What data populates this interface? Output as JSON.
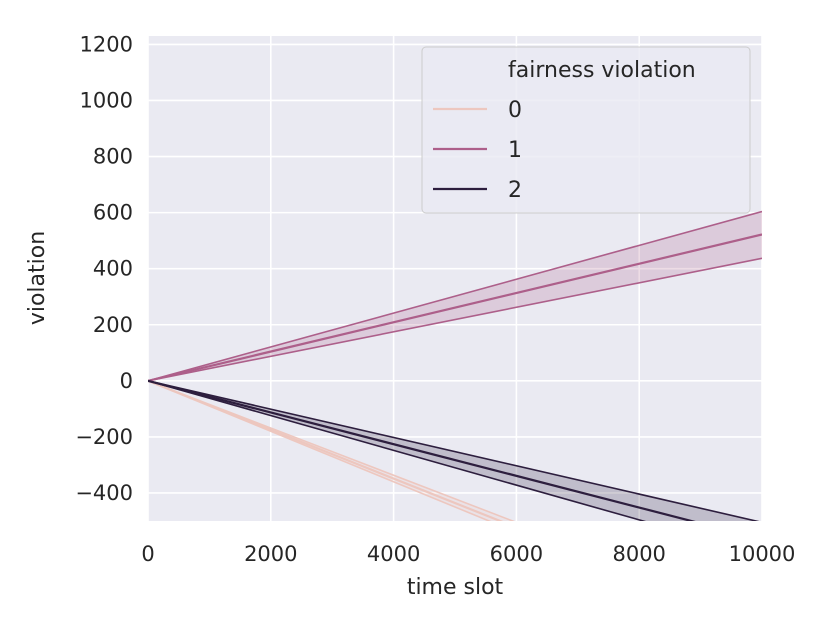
{
  "chart_data": {
    "type": "line",
    "xlabel": "time slot",
    "ylabel": "violation",
    "xlim": [
      0,
      10000
    ],
    "ylim": [
      -500,
      1230
    ],
    "xticks": [
      0,
      2000,
      4000,
      6000,
      8000,
      10000
    ],
    "xtick_labels": [
      "0",
      "2000",
      "4000",
      "6000",
      "8000",
      "10000"
    ],
    "yticks": [
      -400,
      -200,
      0,
      200,
      400,
      600,
      800,
      1000,
      1200
    ],
    "ytick_labels": [
      "−400",
      "−200",
      "0",
      "200",
      "400",
      "600",
      "800",
      "1000",
      "1200"
    ],
    "grid": true,
    "background": "#eaeaf2",
    "legend": {
      "title": "fairness violation",
      "position": "top-right",
      "entries": [
        "0",
        "1",
        "2"
      ]
    },
    "series": [
      {
        "name": "0",
        "color": "#edc7bf",
        "x": [
          0,
          6000
        ],
        "mean": [
          0,
          -523
        ],
        "lower": [
          0,
          -540
        ],
        "upper": [
          0,
          -505
        ]
      },
      {
        "name": "1",
        "color": "#ad5f8a",
        "x": [
          0,
          10000
        ],
        "mean": [
          0,
          522
        ],
        "lower": [
          0,
          437
        ],
        "upper": [
          0,
          604
        ]
      },
      {
        "name": "2",
        "color": "#2d1e3e",
        "x": [
          0,
          10000
        ],
        "mean": [
          0,
          -565
        ],
        "lower": [
          0,
          -620
        ],
        "upper": [
          0,
          -505
        ]
      }
    ]
  }
}
